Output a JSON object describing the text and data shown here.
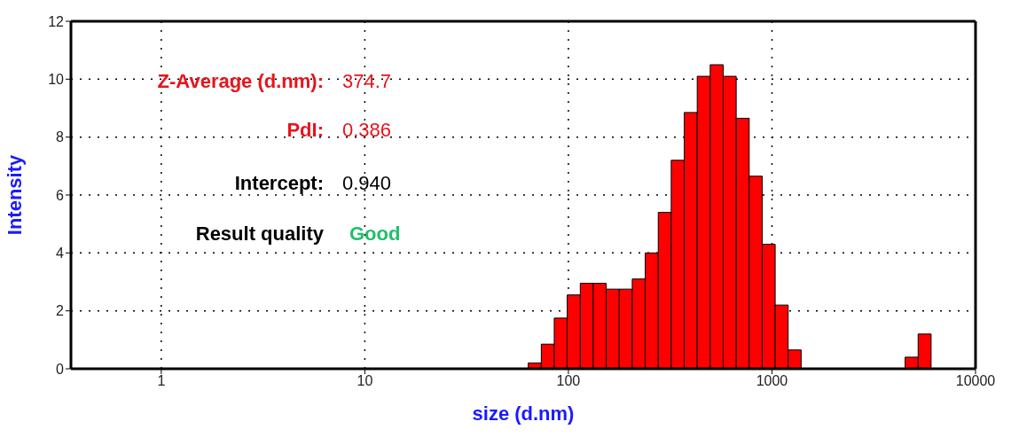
{
  "chart_data": {
    "type": "histogram",
    "xlabel": "size (d.nm)",
    "ylabel": "Intensity",
    "log": "x",
    "color": "#ff0000",
    "grid": true,
    "bins": [
      63.5,
      73.6,
      85.2,
      98.7,
      114.4,
      132.5,
      153.5,
      177.8,
      205.9,
      238.5,
      276.3,
      320.0,
      370.7,
      429.4,
      497.4,
      576.3,
      667.4,
      773.2,
      895.5,
      1037,
      1201,
      1391,
      1612,
      1867,
      2162,
      2505,
      2901,
      3361,
      3893,
      4510,
      5224,
      6050
    ],
    "values": [
      0.2,
      0.85,
      1.75,
      2.55,
      2.95,
      2.95,
      2.75,
      2.75,
      3.1,
      4.0,
      5.4,
      7.2,
      8.85,
      10.1,
      10.5,
      10.1,
      8.65,
      6.65,
      4.3,
      2.2,
      0.65,
      0,
      0,
      0,
      0,
      0,
      0,
      0,
      0,
      0.4,
      1.2
    ],
    "xlim": [
      0.36,
      10000
    ],
    "xticks": [
      1,
      10,
      100,
      1000,
      10000
    ],
    "ylim": [
      0,
      12
    ],
    "yticks": [
      0,
      2,
      4,
      6,
      8,
      10,
      12
    ],
    "annotations": [
      "Z-Average (d.nm):",
      "374.7",
      "PdI:",
      "0.386",
      "Intercept:",
      "0.940",
      "Result quality",
      "Good"
    ]
  }
}
